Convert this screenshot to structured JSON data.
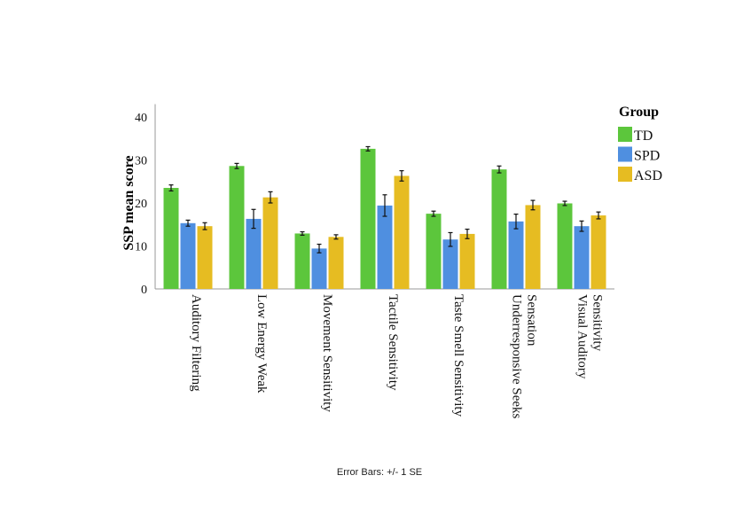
{
  "chart_data": {
    "type": "bar",
    "ylabel": "SSP mean score",
    "xlabel": "",
    "ylim": [
      0,
      43
    ],
    "yticks": [
      0,
      10,
      20,
      30,
      40
    ],
    "grid": false,
    "legend_title": "Group",
    "legend_placement": "right",
    "categories": [
      [
        "Auditory Filtering"
      ],
      [
        "Low Energy Weak"
      ],
      [
        "Movement Sensitivity"
      ],
      [
        "Tactile Sensitivity"
      ],
      [
        "Taste Smell Sensitivity"
      ],
      [
        "Underresponsive Seeks",
        "Sensation"
      ],
      [
        "Visual Auditory",
        "Sensitivity"
      ]
    ],
    "series": [
      {
        "name": "TD",
        "color": "#5cc63c",
        "values": [
          23.5,
          28.6,
          12.9,
          32.6,
          17.5,
          27.8,
          19.9
        ],
        "se": [
          0.7,
          0.6,
          0.4,
          0.5,
          0.6,
          0.8,
          0.5
        ]
      },
      {
        "name": "SPD",
        "color": "#4f8fe0",
        "values": [
          15.3,
          16.3,
          9.4,
          19.4,
          11.5,
          15.7,
          14.6
        ],
        "se": [
          0.7,
          2.2,
          1.0,
          2.5,
          1.6,
          1.7,
          1.2
        ]
      },
      {
        "name": "ASD",
        "color": "#e6bc22",
        "values": [
          14.6,
          21.3,
          12.1,
          26.3,
          12.8,
          19.5,
          17.1
        ],
        "se": [
          0.8,
          1.3,
          0.5,
          1.2,
          1.1,
          1.1,
          0.8
        ]
      }
    ],
    "footnote": "Error Bars: +/- 1 SE"
  }
}
